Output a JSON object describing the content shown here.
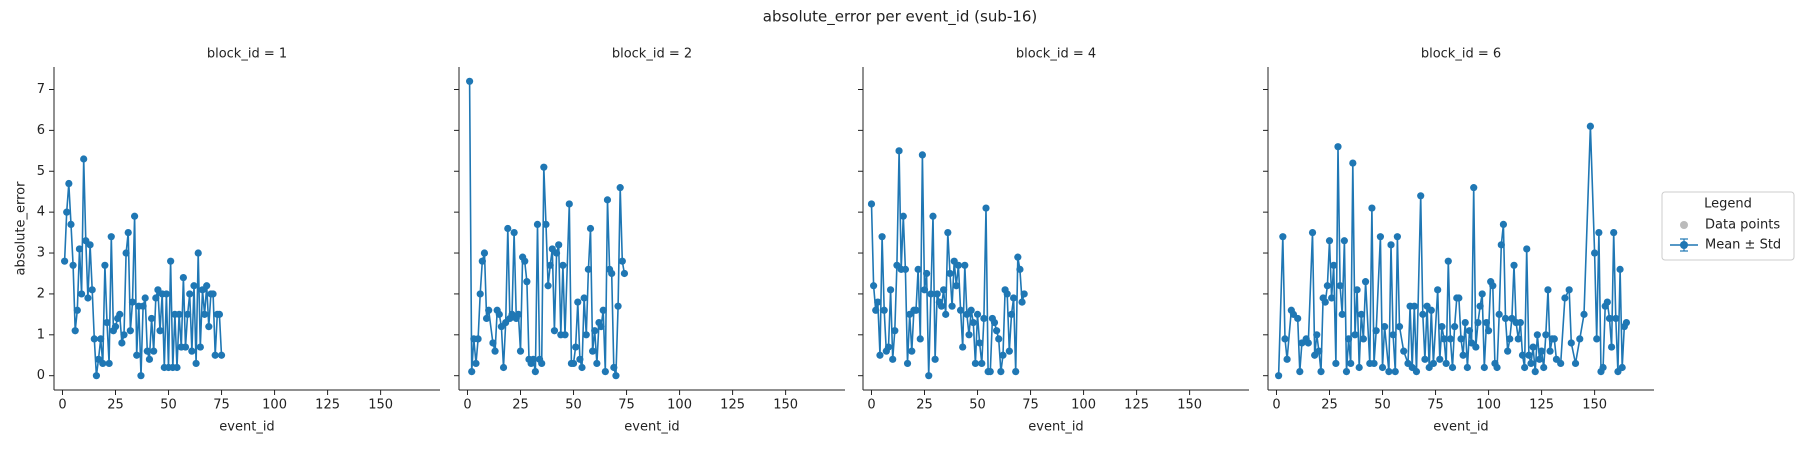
{
  "figure": {
    "title": "absolute_error per event_id (sub-16)"
  },
  "legend": {
    "title": "Legend",
    "entries": [
      {
        "name": "Data points",
        "color": "#bbbbbb"
      },
      {
        "name": "Mean ± Std",
        "color": "#1f77b4"
      }
    ]
  },
  "chart_data": [
    {
      "type": "line",
      "title": "block_id = 1",
      "xlabel": "event_id",
      "ylabel": "absolute_error",
      "color": "#1f77b4",
      "xlim": [
        -4,
        178
      ],
      "ylim": [
        -0.35,
        7.55
      ],
      "xticks": [
        0,
        25,
        50,
        75,
        100,
        125,
        150
      ],
      "yticks": [
        0,
        1,
        2,
        3,
        4,
        5,
        6,
        7
      ],
      "x": [
        1,
        2,
        3,
        4,
        5,
        6,
        7,
        8,
        9,
        10,
        11,
        12,
        13,
        14,
        15,
        16,
        17,
        18,
        19,
        20,
        21,
        22,
        23,
        24,
        25,
        26,
        27,
        28,
        29,
        30,
        31,
        32,
        33,
        34,
        35,
        36,
        37,
        38,
        39,
        40,
        41,
        42,
        43,
        44,
        45,
        46,
        47,
        48,
        49,
        50,
        51,
        52,
        53,
        54,
        55,
        56,
        57,
        58,
        59,
        60,
        61,
        62,
        63,
        64,
        65,
        66,
        67,
        68,
        69,
        70,
        71,
        72,
        73,
        74,
        75
      ],
      "values": [
        2.8,
        4.0,
        4.7,
        3.7,
        2.7,
        1.1,
        1.6,
        3.1,
        2.0,
        5.3,
        3.3,
        1.9,
        3.2,
        2.1,
        0.9,
        0.0,
        0.4,
        0.9,
        0.3,
        2.7,
        1.3,
        0.3,
        3.4,
        1.1,
        1.2,
        1.4,
        1.5,
        0.8,
        1.0,
        3.0,
        3.5,
        1.1,
        1.8,
        3.9,
        0.5,
        1.7,
        0.0,
        1.7,
        1.9,
        0.6,
        0.4,
        1.4,
        0.6,
        1.9,
        2.1,
        1.1,
        2.0,
        0.2,
        2.0,
        0.2,
        2.8,
        0.2,
        1.5,
        0.2,
        1.5,
        0.7,
        2.4,
        0.7,
        1.5,
        2.0,
        0.6,
        2.2,
        0.3,
        3.0,
        0.7,
        2.1,
        1.5,
        2.2,
        1.2,
        2.0,
        2.0,
        0.5,
        1.5,
        1.5,
        0.5
      ]
    },
    {
      "type": "line",
      "title": "block_id = 2",
      "xlabel": "event_id",
      "color": "#1f77b4",
      "xlim": [
        -4,
        178
      ],
      "ylim": [
        -0.35,
        7.55
      ],
      "xticks": [
        0,
        25,
        50,
        75,
        100,
        125,
        150
      ],
      "yticks": [
        0,
        1,
        2,
        3,
        4,
        5,
        6,
        7
      ],
      "x": [
        1,
        2,
        3,
        4,
        5,
        6,
        7,
        8,
        9,
        10,
        12,
        13,
        14,
        15,
        16,
        17,
        18,
        19,
        20,
        21,
        22,
        23,
        24,
        25,
        26,
        27,
        28,
        29,
        30,
        31,
        32,
        33,
        34,
        35,
        36,
        37,
        38,
        39,
        40,
        41,
        42,
        43,
        44,
        45,
        46,
        48,
        49,
        50,
        51,
        52,
        53,
        54,
        55,
        56,
        57,
        58,
        59,
        60,
        61,
        62,
        63,
        64,
        65,
        66,
        67,
        68,
        69,
        70,
        71,
        72,
        73,
        74
      ],
      "values": [
        7.2,
        0.1,
        0.9,
        0.3,
        0.9,
        2.0,
        2.8,
        3.0,
        1.4,
        1.6,
        0.8,
        0.6,
        1.6,
        1.5,
        1.2,
        0.2,
        1.3,
        3.6,
        1.4,
        1.5,
        3.5,
        1.4,
        1.5,
        0.6,
        2.9,
        2.8,
        2.3,
        0.4,
        0.3,
        0.4,
        0.1,
        3.7,
        0.4,
        0.3,
        5.1,
        3.7,
        2.2,
        2.7,
        3.1,
        1.1,
        3.0,
        3.2,
        1.0,
        2.7,
        1.0,
        4.2,
        0.3,
        0.3,
        0.7,
        1.8,
        0.4,
        0.2,
        1.9,
        1.0,
        2.6,
        3.6,
        0.6,
        1.1,
        0.3,
        1.3,
        1.2,
        1.6,
        0.1,
        4.3,
        2.6,
        2.5,
        0.2,
        0.0,
        1.7,
        4.6,
        2.8,
        2.5
      ]
    },
    {
      "type": "line",
      "title": "block_id = 4",
      "xlabel": "event_id",
      "color": "#1f77b4",
      "xlim": [
        -4,
        178
      ],
      "ylim": [
        -0.35,
        7.55
      ],
      "xticks": [
        0,
        25,
        50,
        75,
        100,
        125,
        150
      ],
      "yticks": [
        0,
        1,
        2,
        3,
        4,
        5,
        6,
        7
      ],
      "x": [
        0,
        1,
        2,
        3,
        4,
        5,
        6,
        7,
        8,
        9,
        10,
        11,
        12,
        13,
        14,
        15,
        16,
        17,
        18,
        19,
        20,
        21,
        22,
        23,
        24,
        25,
        26,
        27,
        28,
        29,
        30,
        31,
        32,
        33,
        34,
        35,
        36,
        37,
        38,
        39,
        40,
        41,
        42,
        43,
        44,
        45,
        46,
        47,
        48,
        49,
        50,
        51,
        52,
        53,
        54,
        55,
        56,
        57,
        58,
        59,
        60,
        61,
        62,
        63,
        64,
        65,
        66,
        67,
        68,
        69,
        70,
        71,
        72
      ],
      "values": [
        4.2,
        2.2,
        1.6,
        1.8,
        0.5,
        3.4,
        1.6,
        0.6,
        0.7,
        2.1,
        0.4,
        1.1,
        2.7,
        5.5,
        2.6,
        3.9,
        2.6,
        0.3,
        1.5,
        0.6,
        1.6,
        1.6,
        2.6,
        0.9,
        5.4,
        2.1,
        2.5,
        0.0,
        2.0,
        3.9,
        0.4,
        2.0,
        1.8,
        1.7,
        2.1,
        1.5,
        3.5,
        2.5,
        1.7,
        2.8,
        2.2,
        2.7,
        1.6,
        0.7,
        2.7,
        1.5,
        1.0,
        1.6,
        1.3,
        0.3,
        1.5,
        0.8,
        0.3,
        1.4,
        4.1,
        0.1,
        0.1,
        1.4,
        1.3,
        1.1,
        0.9,
        0.1,
        0.5,
        2.1,
        2.0,
        0.6,
        1.5,
        1.9,
        0.1,
        2.9,
        2.6,
        1.8,
        2.0
      ]
    },
    {
      "type": "line",
      "title": "block_id = 6",
      "xlabel": "event_id",
      "color": "#1f77b4",
      "xlim": [
        -4,
        178
      ],
      "ylim": [
        -0.35,
        7.55
      ],
      "xticks": [
        0,
        25,
        50,
        75,
        100,
        125,
        150
      ],
      "yticks": [
        0,
        1,
        2,
        3,
        4,
        5,
        6,
        7
      ],
      "x": [
        1,
        3,
        4,
        5,
        7,
        8,
        10,
        11,
        12,
        14,
        15,
        17,
        18,
        19,
        20,
        21,
        22,
        23,
        24,
        25,
        26,
        27,
        28,
        29,
        30,
        31,
        32,
        33,
        34,
        35,
        36,
        37,
        38,
        39,
        40,
        41,
        42,
        44,
        45,
        46,
        47,
        49,
        50,
        51,
        53,
        54,
        55,
        56,
        57,
        58,
        60,
        62,
        63,
        64,
        65,
        66,
        68,
        69,
        70,
        71,
        72,
        73,
        74,
        76,
        77,
        78,
        79,
        80,
        81,
        82,
        83,
        84,
        85,
        86,
        87,
        88,
        89,
        90,
        91,
        92,
        93,
        94,
        95,
        96,
        97,
        98,
        99,
        100,
        101,
        102,
        103,
        104,
        105,
        106,
        107,
        108,
        109,
        110,
        111,
        112,
        113,
        114,
        115,
        116,
        117,
        118,
        119,
        120,
        121,
        122,
        123,
        124,
        125,
        126,
        127,
        128,
        129,
        130,
        131,
        132,
        134,
        136,
        138,
        139,
        141,
        143,
        145,
        148,
        150,
        151,
        152,
        153,
        154,
        155,
        156,
        157,
        158,
        159,
        160,
        161,
        162,
        163,
        164,
        165
      ],
      "values": [
        0.0,
        3.4,
        0.9,
        0.4,
        1.6,
        1.5,
        1.4,
        0.1,
        0.8,
        0.9,
        0.8,
        3.5,
        0.5,
        1.0,
        0.6,
        0.1,
        1.9,
        1.8,
        2.2,
        3.3,
        1.9,
        2.7,
        0.3,
        5.6,
        2.2,
        1.5,
        3.3,
        0.1,
        0.9,
        0.3,
        5.2,
        1.0,
        2.1,
        0.2,
        1.5,
        0.9,
        2.3,
        0.3,
        4.1,
        0.3,
        1.1,
        3.4,
        0.2,
        1.2,
        0.1,
        3.2,
        1.0,
        0.1,
        3.4,
        1.2,
        0.6,
        0.3,
        1.7,
        0.2,
        1.7,
        0.1,
        4.4,
        1.5,
        0.4,
        1.7,
        0.2,
        1.6,
        0.3,
        2.1,
        0.4,
        1.2,
        0.9,
        0.3,
        2.8,
        0.9,
        0.2,
        1.2,
        1.9,
        1.9,
        0.9,
        0.5,
        1.3,
        0.2,
        1.1,
        0.8,
        4.6,
        0.7,
        1.3,
        1.7,
        2.0,
        0.2,
        1.3,
        1.1,
        2.3,
        2.2,
        0.3,
        0.2,
        1.5,
        3.2,
        3.7,
        1.4,
        0.6,
        0.9,
        1.4,
        2.7,
        1.3,
        0.9,
        1.3,
        0.5,
        0.2,
        3.1,
        0.5,
        0.3,
        0.7,
        0.1,
        1.0,
        0.4,
        0.6,
        0.2,
        1.0,
        2.1,
        0.6,
        0.9,
        0.9,
        0.4,
        0.3,
        1.9,
        2.1,
        0.8,
        0.3,
        0.9,
        1.5,
        6.1,
        3.0,
        0.9,
        3.5,
        0.1,
        0.2,
        1.7,
        1.8,
        1.4,
        0.7,
        3.5,
        1.4,
        0.1,
        2.6,
        0.2,
        1.2,
        1.3
      ]
    }
  ]
}
